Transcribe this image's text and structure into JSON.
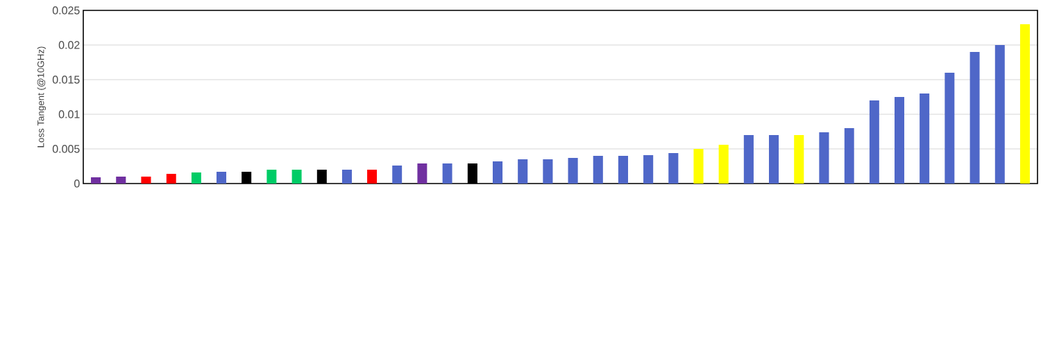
{
  "chart_data": {
    "type": "bar",
    "ylabel": "Loss Tangent (@10GHz)",
    "categories": [
      null,
      null,
      null,
      null,
      null,
      null,
      null,
      null,
      null,
      null,
      null,
      null,
      null,
      null,
      null,
      null,
      null,
      null,
      null,
      null,
      null,
      null,
      null,
      null,
      null,
      null,
      null,
      null,
      null,
      null,
      null,
      null,
      null,
      null,
      null,
      null,
      null,
      null
    ],
    "values": [
      0.0009,
      0.001,
      0.001,
      0.0014,
      0.0016,
      0.0017,
      0.0017,
      0.002,
      0.002,
      0.002,
      0.002,
      0.002,
      0.0026,
      0.0029,
      0.0029,
      0.0029,
      0.0032,
      0.0035,
      0.0035,
      0.0037,
      0.004,
      0.004,
      0.0041,
      0.0044,
      0.005,
      0.0056,
      0.007,
      0.007,
      0.007,
      0.0074,
      0.008,
      0.012,
      0.0125,
      0.013,
      0.016,
      0.019,
      0.02,
      0.023
    ],
    "colors": [
      "#7030a0",
      "#7030a0",
      "#ff0000",
      "#ff0000",
      "#00cc66",
      "#4f67c8",
      "#000000",
      "#00cc66",
      "#00cc66",
      "#000000",
      "#4f67c8",
      "#ff0000",
      "#4f67c8",
      "#7030a0",
      "#4f67c8",
      "#000000",
      "#4f67c8",
      "#4f67c8",
      "#4f67c8",
      "#4f67c8",
      "#4f67c8",
      "#4f67c8",
      "#4f67c8",
      "#4f67c8",
      "#ffff00",
      "#ffff00",
      "#4f67c8",
      "#4f67c8",
      "#ffff00",
      "#4f67c8",
      "#4f67c8",
      "#4f67c8",
      "#4f67c8",
      "#4f67c8",
      "#4f67c8",
      "#4f67c8",
      "#4f67c8",
      "#ffff00"
    ],
    "ylim": [
      0,
      0.025
    ],
    "yticks": [
      0,
      0.005,
      0.01,
      0.015,
      0.02,
      0.025
    ],
    "grid": "y"
  }
}
